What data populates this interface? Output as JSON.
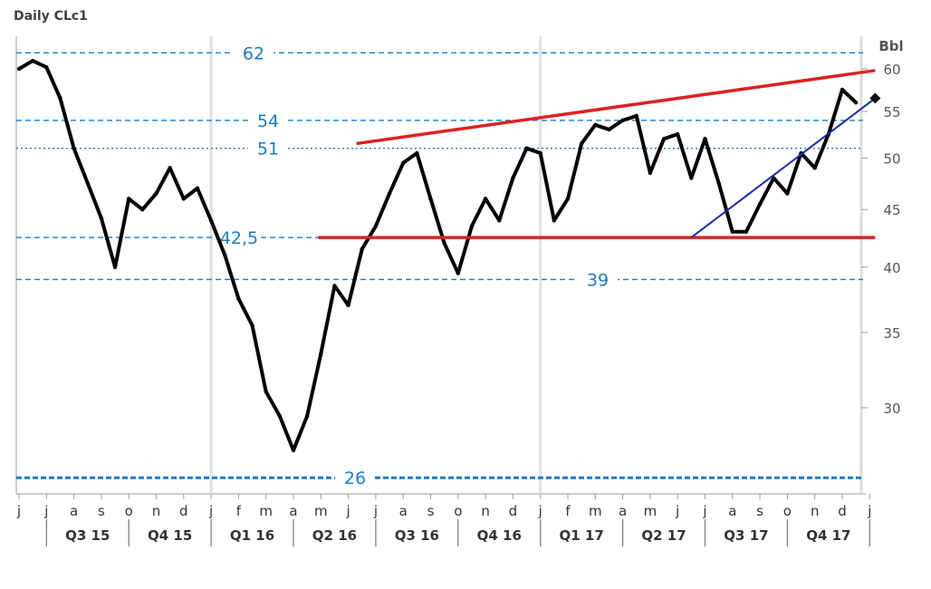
{
  "chart_data": {
    "type": "line",
    "title": "Daily CLc1",
    "unit": "Bbl",
    "y_scale": "log",
    "ylim": [
      24.5,
      63
    ],
    "yticks": [
      30,
      35,
      40,
      45,
      50,
      55,
      60
    ],
    "grid": false,
    "x_months": [
      "j",
      "j",
      "a",
      "s",
      "o",
      "n",
      "d",
      "j",
      "f",
      "m",
      "a",
      "m",
      "j",
      "j",
      "a",
      "s",
      "o",
      "n",
      "d",
      "j",
      "f",
      "m",
      "a",
      "m",
      "j",
      "j",
      "a",
      "s",
      "o",
      "n",
      "d",
      "j"
    ],
    "quarters": [
      "Q3 15",
      "Q4 15",
      "Q1 16",
      "Q2 16",
      "Q3 16",
      "Q4 16",
      "Q1 17",
      "Q2 17",
      "Q3 17",
      "Q4 17"
    ],
    "levels": [
      {
        "value": 62,
        "label": "62",
        "style": "dashed",
        "color": "#1a7cc8"
      },
      {
        "value": 54,
        "label": "54",
        "style": "dashed",
        "color": "#1a7cc8"
      },
      {
        "value": 51,
        "label": "51",
        "style": "dotted",
        "color": "#1a7cc8"
      },
      {
        "value": 42.5,
        "label": "42,5",
        "style": "dashed",
        "color": "#1a7cc8"
      },
      {
        "value": 39,
        "label": "39",
        "style": "dashed",
        "color": "#1a7cc8"
      },
      {
        "value": 26,
        "label": "26",
        "style": "bold-dashed",
        "color": "#1a7cc8"
      }
    ],
    "series": [
      {
        "type": "line",
        "color": "#000000",
        "x": [
          0.0,
          0.5,
          1.0,
          1.5,
          2.0,
          2.5,
          3.0,
          3.5,
          4.0,
          4.5,
          5.0,
          5.5,
          6.0,
          6.5,
          7.0,
          7.5,
          8.0,
          8.5,
          9.0,
          9.5,
          10.0,
          10.5,
          11.0,
          11.5,
          12.0,
          12.5,
          13.0,
          13.5,
          14.0,
          14.5,
          15.0,
          15.5,
          16.0,
          16.5,
          17.0,
          17.5,
          18.0,
          18.5,
          19.0,
          19.5,
          20.0,
          20.5,
          21.0,
          21.5,
          22.0,
          22.5,
          23.0,
          23.5,
          24.0,
          24.5,
          25.0,
          25.5,
          26.0,
          26.5,
          27.0,
          27.5,
          28.0,
          28.5,
          29.0,
          29.5,
          30.0,
          30.5
        ],
        "values": [
          60.0,
          61.0,
          60.2,
          56.5,
          51.0,
          47.5,
          44.2,
          40.0,
          46.0,
          45.0,
          46.5,
          49.0,
          46.0,
          47.0,
          44.0,
          41.0,
          37.5,
          35.5,
          31.0,
          29.5,
          27.5,
          29.5,
          33.5,
          38.5,
          37.0,
          41.5,
          43.5,
          46.5,
          49.5,
          50.5,
          46.0,
          42.0,
          39.5,
          43.5,
          46.0,
          44.0,
          48.0,
          51.0,
          50.5,
          44.0,
          46.0,
          51.5,
          53.5,
          53.0,
          54.0,
          54.5,
          48.5,
          52.0,
          52.5,
          48.0,
          52.0,
          47.5,
          43.0,
          43.0,
          45.5,
          48.0,
          46.5,
          50.5,
          49.0,
          52.5,
          57.5,
          56.0
        ]
      }
    ],
    "trendlines": [
      {
        "x": [
          12.3,
          31.2
        ],
        "values": [
          51.5,
          59.8
        ],
        "color": "#dd2222",
        "label": ""
      },
      {
        "x": [
          10.9,
          31.2
        ],
        "values": [
          42.5,
          42.5
        ],
        "color": "#dd2222",
        "label": ""
      },
      {
        "x": [
          24.5,
          31.2
        ],
        "values": [
          42.5,
          56.5
        ],
        "color": "#1f2aa0",
        "label": ""
      }
    ],
    "last_price_marker": {
      "x": 31.2,
      "value": 56.5
    }
  }
}
